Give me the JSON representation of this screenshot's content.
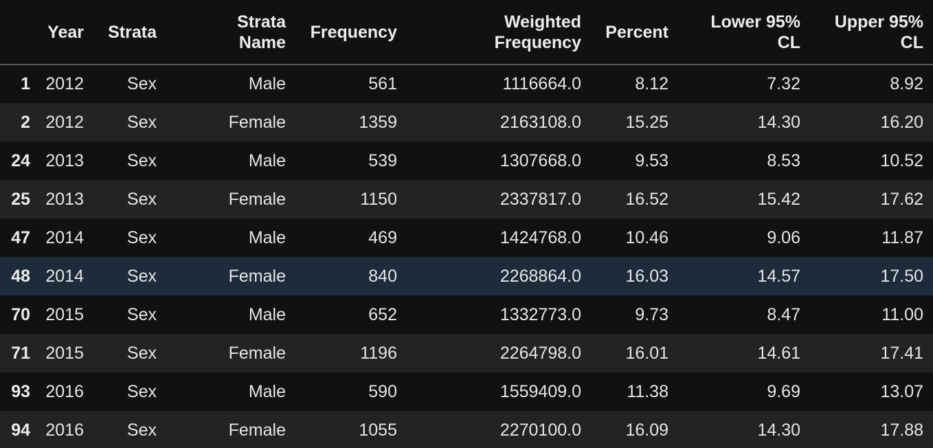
{
  "columns": [
    "",
    "Year",
    "Strata",
    "Strata Name",
    "Frequency",
    "Weighted Frequency",
    "Percent",
    "Lower 95% CL",
    "Upper 95% CL"
  ],
  "header_lines": {
    "year": "Year",
    "strata": "Strata",
    "strata_name_1": "Strata",
    "strata_name_2": "Name",
    "frequency": "Frequency",
    "weighted_1": "Weighted",
    "weighted_2": "Frequency",
    "percent": "Percent",
    "lower_1": "Lower 95%",
    "lower_2": "CL",
    "upper_1": "Upper 95%",
    "upper_2": "CL"
  },
  "rows": [
    {
      "index": "1",
      "year": "2012",
      "strata": "Sex",
      "strata_name": "Male",
      "frequency": "561",
      "weighted_frequency": "1116664.0",
      "percent": "8.12",
      "lower_cl": "7.32",
      "upper_cl": "8.92"
    },
    {
      "index": "2",
      "year": "2012",
      "strata": "Sex",
      "strata_name": "Female",
      "frequency": "1359",
      "weighted_frequency": "2163108.0",
      "percent": "15.25",
      "lower_cl": "14.30",
      "upper_cl": "16.20"
    },
    {
      "index": "24",
      "year": "2013",
      "strata": "Sex",
      "strata_name": "Male",
      "frequency": "539",
      "weighted_frequency": "1307668.0",
      "percent": "9.53",
      "lower_cl": "8.53",
      "upper_cl": "10.52"
    },
    {
      "index": "25",
      "year": "2013",
      "strata": "Sex",
      "strata_name": "Female",
      "frequency": "1150",
      "weighted_frequency": "2337817.0",
      "percent": "16.52",
      "lower_cl": "15.42",
      "upper_cl": "17.62"
    },
    {
      "index": "47",
      "year": "2014",
      "strata": "Sex",
      "strata_name": "Male",
      "frequency": "469",
      "weighted_frequency": "1424768.0",
      "percent": "10.46",
      "lower_cl": "9.06",
      "upper_cl": "11.87"
    },
    {
      "index": "48",
      "year": "2014",
      "strata": "Sex",
      "strata_name": "Female",
      "frequency": "840",
      "weighted_frequency": "2268864.0",
      "percent": "16.03",
      "lower_cl": "14.57",
      "upper_cl": "17.50"
    },
    {
      "index": "70",
      "year": "2015",
      "strata": "Sex",
      "strata_name": "Male",
      "frequency": "652",
      "weighted_frequency": "1332773.0",
      "percent": "9.73",
      "lower_cl": "8.47",
      "upper_cl": "11.00"
    },
    {
      "index": "71",
      "year": "2015",
      "strata": "Sex",
      "strata_name": "Female",
      "frequency": "1196",
      "weighted_frequency": "2264798.0",
      "percent": "16.01",
      "lower_cl": "14.61",
      "upper_cl": "17.41"
    },
    {
      "index": "93",
      "year": "2016",
      "strata": "Sex",
      "strata_name": "Male",
      "frequency": "590",
      "weighted_frequency": "1559409.0",
      "percent": "11.38",
      "lower_cl": "9.69",
      "upper_cl": "13.07"
    },
    {
      "index": "94",
      "year": "2016",
      "strata": "Sex",
      "strata_name": "Female",
      "frequency": "1055",
      "weighted_frequency": "2270100.0",
      "percent": "16.09",
      "lower_cl": "14.30",
      "upper_cl": "17.88"
    }
  ],
  "selected_row": 5,
  "colors": {
    "background": "#111111",
    "row_alt": "#232323",
    "row_selected": "#1d2b3b",
    "text": "#e6e6e6"
  }
}
